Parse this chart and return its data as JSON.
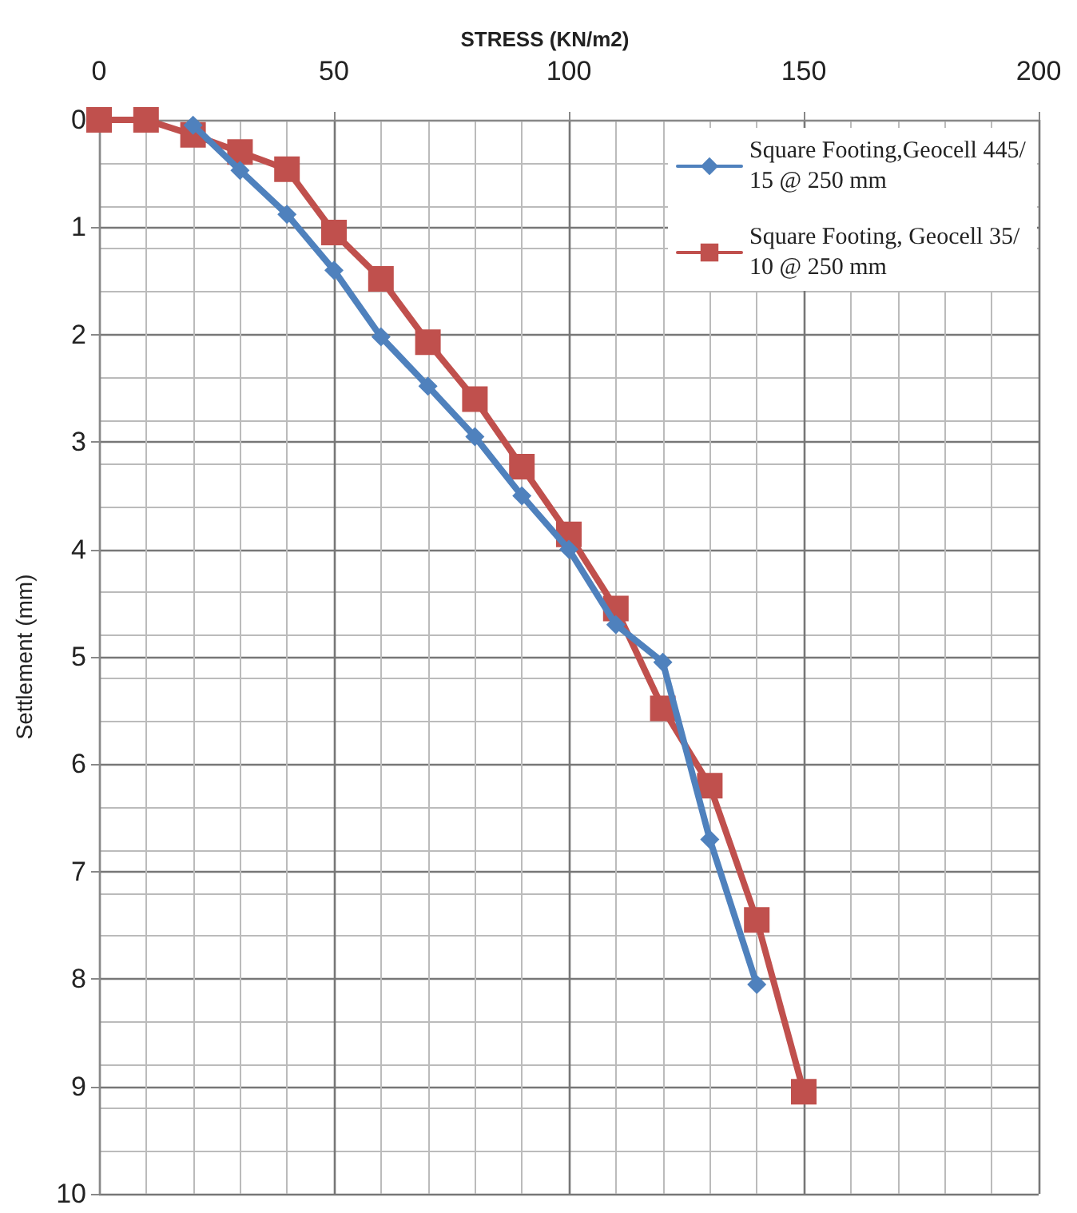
{
  "chart_data": {
    "type": "line",
    "xlabel": "STRESS (KN/m2)",
    "ylabel": "Settlement (mm)",
    "xlim": [
      0,
      200
    ],
    "xticks": [
      0,
      50,
      100,
      150,
      200
    ],
    "ylim": [
      10,
      0
    ],
    "yticks": [
      0,
      1,
      2,
      3,
      4,
      5,
      6,
      7,
      8,
      9,
      10
    ],
    "grid": true,
    "legend": "top right",
    "series": [
      {
        "name": "Square Footing,Geocell 445/15 @ 250 mm",
        "color": "#4f81bd",
        "marker": "diamond",
        "x": [
          20,
          30,
          40,
          50,
          60,
          70,
          80,
          90,
          100,
          110,
          120,
          130,
          140
        ],
        "values": [
          0.05,
          0.47,
          0.88,
          1.4,
          2.02,
          2.48,
          2.95,
          3.5,
          4.0,
          4.7,
          5.05,
          6.7,
          8.05
        ]
      },
      {
        "name": "Square Footing, Geocell 35/10 @ 250 mm",
        "color": "#c0504d",
        "marker": "square",
        "x": [
          0,
          10,
          20,
          30,
          40,
          50,
          60,
          70,
          80,
          90,
          100,
          110,
          120,
          130,
          140,
          150
        ],
        "values": [
          0,
          0,
          0.14,
          0.3,
          0.46,
          1.05,
          1.48,
          2.07,
          2.6,
          3.23,
          3.86,
          4.55,
          5.48,
          6.2,
          7.45,
          9.05
        ]
      }
    ]
  }
}
